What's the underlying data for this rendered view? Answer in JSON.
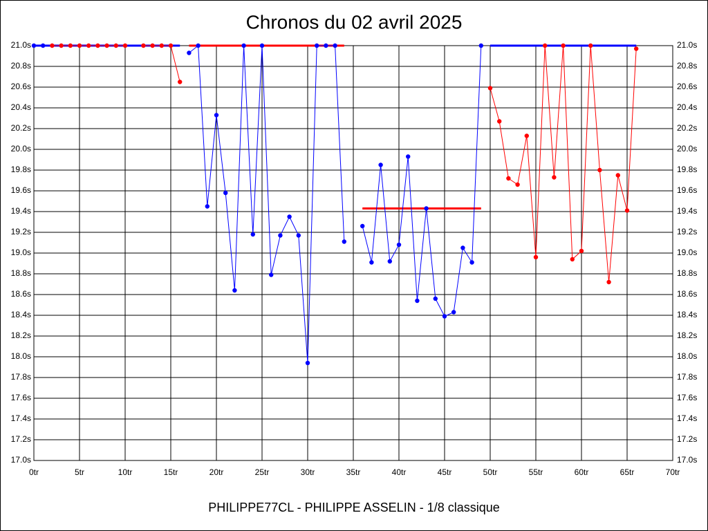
{
  "chart_data": {
    "type": "line",
    "title": "Chronos du 02 avril 2025",
    "x_label": "PHILIPPE77CL - PHILIPPE ASSELIN - 1/8 classique",
    "x": [
      0,
      1,
      2,
      3,
      4,
      5,
      6,
      7,
      8,
      9,
      10,
      11,
      12,
      13,
      14,
      15,
      16,
      17,
      18,
      19,
      20,
      21,
      22,
      23,
      24,
      25,
      26,
      27,
      28,
      29,
      30,
      31,
      32,
      33,
      34,
      35,
      36,
      37,
      38,
      39,
      40,
      41,
      42,
      43,
      44,
      45,
      46,
      47,
      48,
      49,
      50,
      51,
      52,
      53,
      54,
      55,
      56,
      57,
      58,
      59,
      60,
      61,
      62,
      63,
      64,
      65,
      66
    ],
    "series": [
      {
        "color": "#0000ff",
        "values": [
          21.0,
          21.0,
          null,
          null,
          null,
          null,
          null,
          null,
          null,
          null,
          null,
          null,
          null,
          null,
          null,
          null,
          null,
          20.93,
          21.0,
          19.45,
          20.33,
          19.58,
          18.64,
          21.0,
          19.18,
          21.0,
          18.79,
          19.17,
          19.35,
          19.17,
          17.94,
          21.0,
          21.0,
          21.0,
          19.11,
          null,
          19.26,
          18.91,
          19.85,
          18.92,
          19.08,
          19.93,
          18.54,
          19.43,
          18.56,
          18.39,
          18.43,
          19.05,
          18.91,
          21.0,
          null,
          null,
          null,
          null,
          null,
          null,
          null,
          null,
          null,
          null,
          null,
          null,
          null,
          null,
          null,
          null,
          null
        ]
      },
      {
        "color": "#ff0000",
        "values": [
          null,
          null,
          21.0,
          21.0,
          21.0,
          21.0,
          21.0,
          21.0,
          21.0,
          21.0,
          21.0,
          null,
          21.0,
          21.0,
          21.0,
          21.0,
          20.65,
          null,
          null,
          null,
          null,
          null,
          null,
          null,
          null,
          null,
          null,
          null,
          null,
          null,
          null,
          null,
          null,
          null,
          null,
          null,
          null,
          null,
          null,
          null,
          null,
          null,
          null,
          null,
          null,
          null,
          null,
          null,
          null,
          null,
          20.59,
          20.27,
          19.72,
          19.66,
          20.13,
          18.96,
          21.0,
          19.73,
          21.0,
          18.94,
          19.02,
          21.0,
          19.8,
          18.72,
          19.75,
          19.41,
          20.97
        ]
      }
    ],
    "reference_lines": [
      {
        "value": 21.0,
        "x": [
          0,
          16
        ],
        "color": "#0000ff"
      },
      {
        "value": 21.0,
        "x": [
          17,
          34
        ],
        "color": "#ff0000"
      },
      {
        "value": 19.43,
        "x": [
          36,
          49
        ],
        "color": "#ff0000"
      },
      {
        "value": 21.0,
        "x": [
          50,
          66
        ],
        "color": "#0000ff"
      }
    ],
    "xlim": [
      0,
      70
    ],
    "ylim": [
      17.0,
      21.0
    ],
    "xticks": [
      {
        "value": 0,
        "label": "0tr"
      },
      {
        "value": 5,
        "label": "5tr"
      },
      {
        "value": 10,
        "label": "10tr"
      },
      {
        "value": 15,
        "label": "15tr"
      },
      {
        "value": 20,
        "label": "20tr"
      },
      {
        "value": 25,
        "label": "25tr"
      },
      {
        "value": 30,
        "label": "30tr"
      },
      {
        "value": 35,
        "label": "35tr"
      },
      {
        "value": 40,
        "label": "40tr"
      },
      {
        "value": 45,
        "label": "45tr"
      },
      {
        "value": 50,
        "label": "50tr"
      },
      {
        "value": 55,
        "label": "55tr"
      },
      {
        "value": 60,
        "label": "60tr"
      },
      {
        "value": 65,
        "label": "65tr"
      },
      {
        "value": 70,
        "label": "70tr"
      }
    ],
    "yticks": [
      {
        "value": 17.0,
        "label": "17.0s"
      },
      {
        "value": 17.2,
        "label": "17.2s"
      },
      {
        "value": 17.4,
        "label": "17.4s"
      },
      {
        "value": 17.6,
        "label": "17.6s"
      },
      {
        "value": 17.8,
        "label": "17.8s"
      },
      {
        "value": 18.0,
        "label": "18.0s"
      },
      {
        "value": 18.2,
        "label": "18.2s"
      },
      {
        "value": 18.4,
        "label": "18.4s"
      },
      {
        "value": 18.6,
        "label": "18.6s"
      },
      {
        "value": 18.8,
        "label": "18.8s"
      },
      {
        "value": 19.0,
        "label": "19.0s"
      },
      {
        "value": 19.2,
        "label": "19.2s"
      },
      {
        "value": 19.4,
        "label": "19.4s"
      },
      {
        "value": 19.6,
        "label": "19.6s"
      },
      {
        "value": 19.8,
        "label": "19.8s"
      },
      {
        "value": 20.0,
        "label": "20.0s"
      },
      {
        "value": 20.2,
        "label": "20.2s"
      },
      {
        "value": 20.4,
        "label": "20.4s"
      },
      {
        "value": 20.6,
        "label": "20.6s"
      },
      {
        "value": 20.8,
        "label": "20.8s"
      },
      {
        "value": 21.0,
        "label": "21.0s"
      }
    ],
    "grid": true
  }
}
